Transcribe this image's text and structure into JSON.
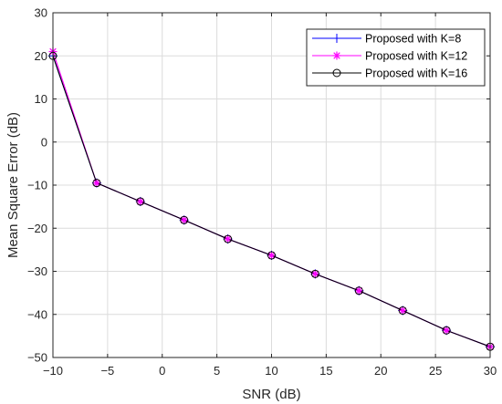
{
  "chart_data": {
    "type": "line",
    "xlabel": "SNR (dB)",
    "ylabel": "Mean Square Error (dB)",
    "xlim": [
      -10,
      30
    ],
    "ylim": [
      -50,
      30
    ],
    "xticks": [
      -10,
      -5,
      0,
      5,
      10,
      15,
      20,
      25,
      30
    ],
    "yticks": [
      -50,
      -40,
      -30,
      -20,
      -10,
      0,
      10,
      20,
      30
    ],
    "xtick_labels": [
      "−10",
      "−5",
      "0",
      "5",
      "10",
      "15",
      "20",
      "25",
      "30"
    ],
    "ytick_labels": [
      "−50",
      "−40",
      "−30",
      "−20",
      "−10",
      "0",
      "10",
      "20",
      "30"
    ],
    "grid": true,
    "legend_position": "top-right",
    "x": [
      -10,
      -6,
      -2,
      2,
      6,
      10,
      14,
      18,
      22,
      26,
      30
    ],
    "series": [
      {
        "name": "Proposed with K=8",
        "color": "#0000ff",
        "marker": "plus",
        "values": [
          20.0,
          -9.5,
          -13.8,
          -18.1,
          -22.5,
          -26.3,
          -30.6,
          -34.5,
          -39.1,
          -43.7,
          -47.5
        ]
      },
      {
        "name": "Proposed with K=12",
        "color": "#ff00ff",
        "marker": "asterisk",
        "values": [
          21.0,
          -9.5,
          -13.8,
          -18.1,
          -22.5,
          -26.3,
          -30.6,
          -34.5,
          -39.1,
          -43.7,
          -47.5
        ]
      },
      {
        "name": "Proposed with K=16",
        "color": "#000000",
        "marker": "circle",
        "values": [
          20.0,
          -9.5,
          -13.8,
          -18.1,
          -22.5,
          -26.3,
          -30.6,
          -34.5,
          -39.1,
          -43.7,
          -47.5
        ]
      }
    ]
  }
}
